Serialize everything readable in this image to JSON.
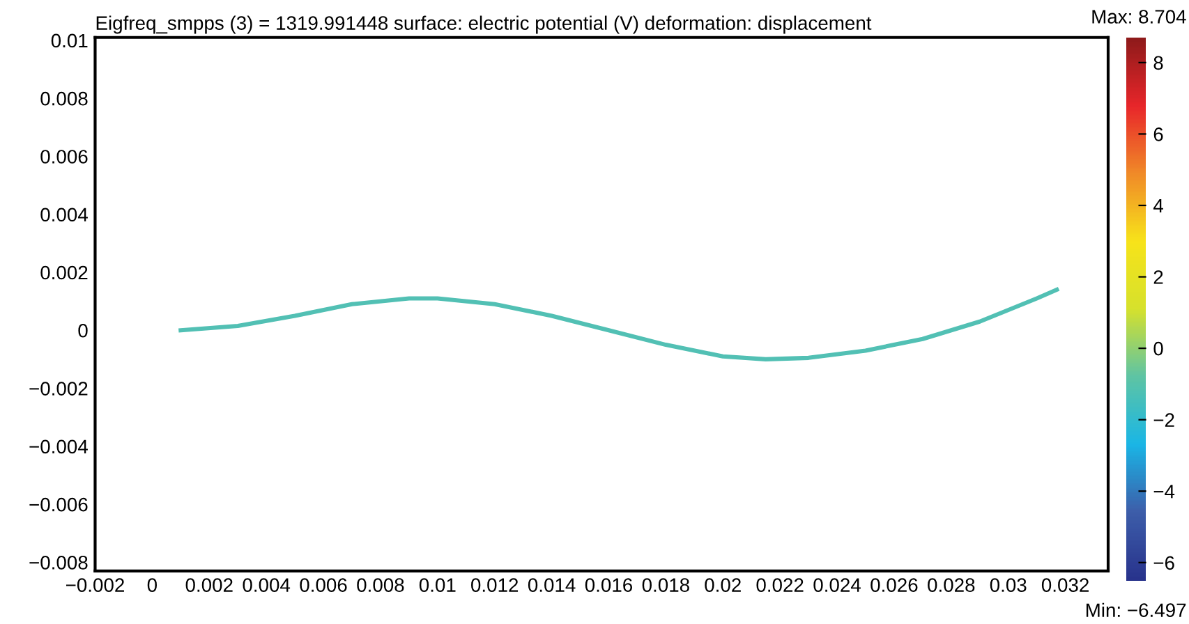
{
  "chart_data": {
    "type": "line",
    "title": "Eigfreq_smpps (3) = 1319.991448 surface: electric potential (V) deformation: displacement",
    "x": [
      0.001,
      0.003,
      0.005,
      0.007,
      0.009,
      0.01,
      0.012,
      0.014,
      0.016,
      0.018,
      0.02,
      0.0215,
      0.023,
      0.025,
      0.027,
      0.029,
      0.031,
      0.0317
    ],
    "series": [
      {
        "color": "#52c0b4",
        "values": [
          0.0,
          0.00015,
          0.0005,
          0.0009,
          0.0011,
          0.0011,
          0.0009,
          0.0005,
          0.0,
          -0.0005,
          -0.0009,
          -0.001,
          -0.00095,
          -0.0007,
          -0.0003,
          0.0003,
          0.0011,
          0.0014
        ]
      }
    ],
    "xlim": [
      -0.002,
      0.0335
    ],
    "ylim": [
      -0.0083,
      0.0101
    ],
    "xticks": [
      -0.002,
      0,
      0.002,
      0.004,
      0.006,
      0.008,
      0.01,
      0.012,
      0.014,
      0.016,
      0.018,
      0.02,
      0.022,
      0.024,
      0.026,
      0.028,
      0.03,
      0.032
    ],
    "yticks": [
      {
        "value": -0.008,
        "label": "−0.008"
      },
      {
        "value": -0.006,
        "label": "−0.006"
      },
      {
        "value": -0.004,
        "label": "−0.004"
      },
      {
        "value": -0.002,
        "label": "−0.002"
      },
      0,
      0.002,
      0.004,
      0.006,
      0.008,
      0.01
    ],
    "clim": [
      -6.497,
      8.704
    ],
    "cticks": [
      {
        "value": -6,
        "label": "−6"
      },
      {
        "value": -4,
        "label": "−4"
      },
      {
        "value": -2,
        "label": "−2"
      },
      0,
      2,
      4,
      6,
      8
    ],
    "annotations": [
      "Max: 8.704",
      "Min: −6.497"
    ],
    "grid": false,
    "legend": false,
    "line_style": "solid",
    "marker": "none"
  }
}
